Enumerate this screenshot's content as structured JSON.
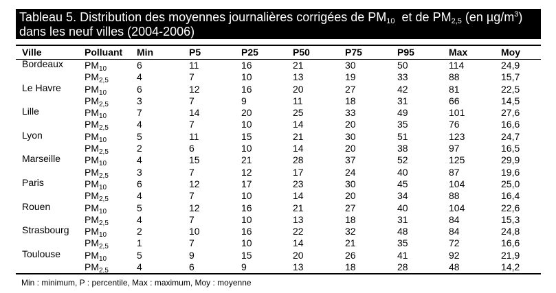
{
  "title": {
    "line1": {
      "pre": "Tableau 5. Distribution des moyennes journalières corrigées de PM",
      "sub1": "10",
      "mid": "  et de PM",
      "sub2": "2,5",
      "post": " (en µg/m",
      "sup": "3",
      "end": ")"
    },
    "line2": "dans les neuf villes (2004-2006)"
  },
  "headers": [
    "Ville",
    "Polluant",
    "Min",
    "P5",
    "P25",
    "P50",
    "P75",
    "P95",
    "Max",
    "Moy"
  ],
  "pollutants": {
    "pm10": {
      "base": "PM",
      "sub": "10"
    },
    "pm25": {
      "base": "PM",
      "sub": "2,5"
    }
  },
  "cities": [
    {
      "name": "Bordeaux",
      "pm10": [
        "6",
        "11",
        "16",
        "21",
        "30",
        "50",
        "114",
        "24,9"
      ],
      "pm25": [
        "4",
        "7",
        "10",
        "13",
        "19",
        "33",
        "88",
        "15,7"
      ]
    },
    {
      "name": "Le Havre",
      "pm10": [
        "6",
        "12",
        "16",
        "20",
        "27",
        "42",
        "81",
        "22,5"
      ],
      "pm25": [
        "3",
        "7",
        "9",
        "11",
        "18",
        "31",
        "66",
        "14,5"
      ]
    },
    {
      "name": "Lille",
      "pm10": [
        "7",
        "14",
        "20",
        "25",
        "33",
        "49",
        "101",
        "27,6"
      ],
      "pm25": [
        "4",
        "7",
        "10",
        "14",
        "20",
        "35",
        "76",
        "16,6"
      ]
    },
    {
      "name": "Lyon",
      "pm10": [
        "5",
        "11",
        "15",
        "21",
        "30",
        "51",
        "123",
        "24,7"
      ],
      "pm25": [
        "2",
        "6",
        "10",
        "14",
        "20",
        "38",
        "97",
        "16,5"
      ]
    },
    {
      "name": "Marseille",
      "pm10": [
        "4",
        "15",
        "21",
        "28",
        "37",
        "52",
        "125",
        "29,9"
      ],
      "pm25": [
        "3",
        "7",
        "12",
        "17",
        "24",
        "40",
        "87",
        "19,6"
      ]
    },
    {
      "name": "Paris",
      "pm10": [
        "6",
        "12",
        "17",
        "23",
        "30",
        "45",
        "104",
        "25,0"
      ],
      "pm25": [
        "4",
        "7",
        "10",
        "14",
        "20",
        "34",
        "88",
        "16,4"
      ]
    },
    {
      "name": "Rouen",
      "pm10": [
        "5",
        "12",
        "16",
        "21",
        "27",
        "40",
        "104",
        "22,6"
      ],
      "pm25": [
        "4",
        "7",
        "10",
        "13",
        "18",
        "31",
        "84",
        "15,3"
      ]
    },
    {
      "name": "Strasbourg",
      "pm10": [
        "2",
        "10",
        "16",
        "22",
        "32",
        "48",
        "84",
        "24,8"
      ],
      "pm25": [
        "1",
        "7",
        "10",
        "14",
        "21",
        "35",
        "72",
        "16,6"
      ]
    },
    {
      "name": "Toulouse",
      "pm10": [
        "5",
        "9",
        "15",
        "20",
        "26",
        "41",
        "92",
        "21,9"
      ],
      "pm25": [
        "4",
        "6",
        "9",
        "13",
        "18",
        "28",
        "48",
        "14,2"
      ]
    }
  ],
  "footnote": "Min : minimum, P : percentile, Max : maximum, Moy : moyenne"
}
